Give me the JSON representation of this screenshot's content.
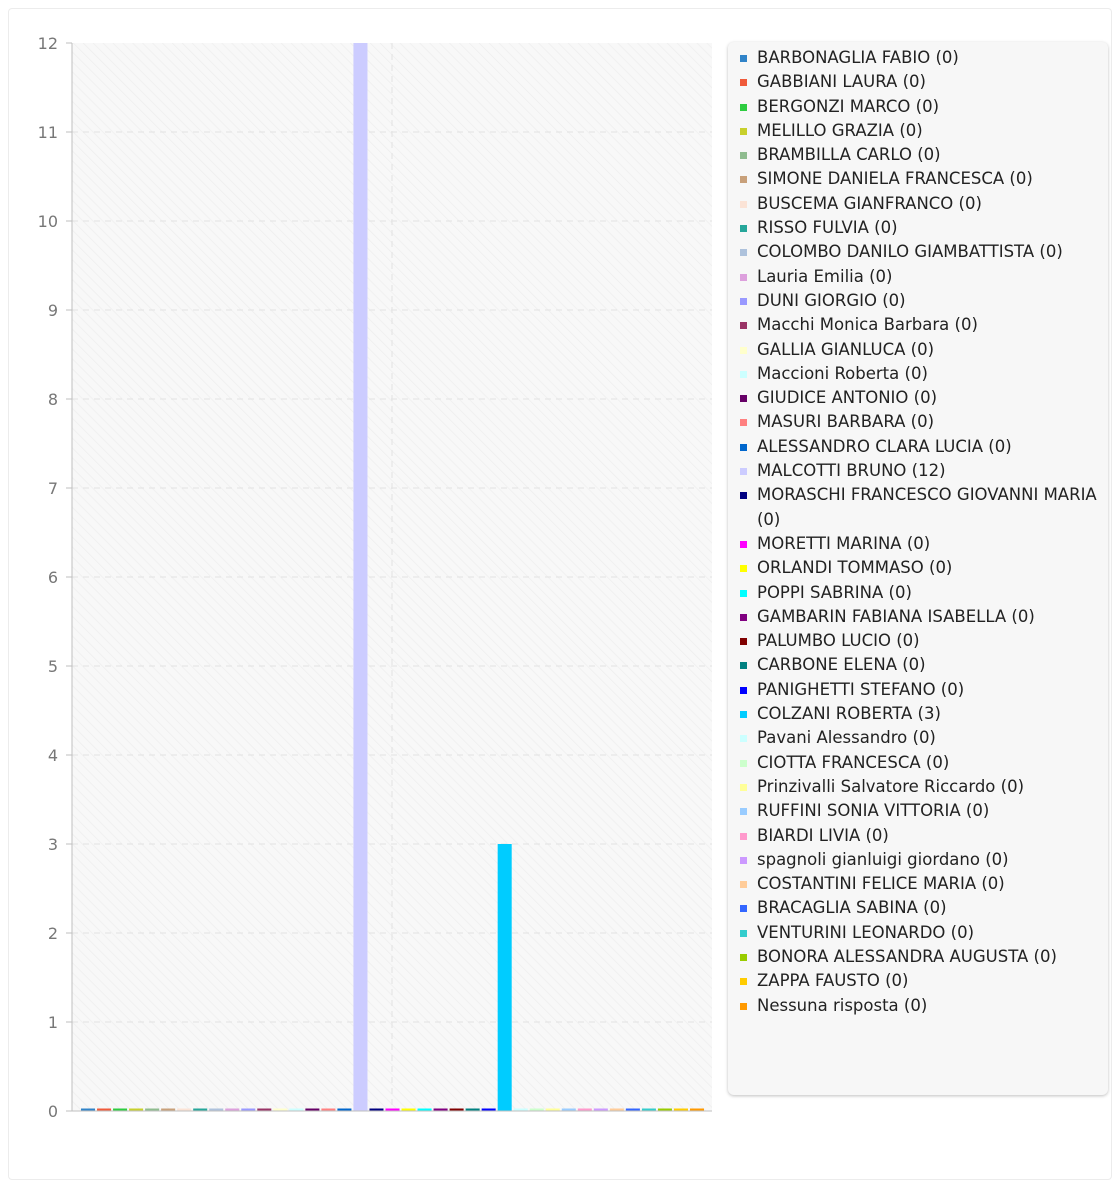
{
  "chart_data": {
    "type": "bar",
    "ylim": [
      0,
      12
    ],
    "yticks": [
      "0",
      "1",
      "2",
      "3",
      "4",
      "5",
      "6",
      "7",
      "8",
      "9",
      "10",
      "11",
      "12"
    ],
    "grid": true,
    "legend_position": "right",
    "series": [
      {
        "name": "BARBONAGLIA FABIO (0)",
        "value": 0,
        "color": "#3083c8"
      },
      {
        "name": "GABBIANI LAURA (0)",
        "value": 0,
        "color": "#f05a3a"
      },
      {
        "name": "BERGONZI MARCO (0)",
        "value": 0,
        "color": "#2ecc40"
      },
      {
        "name": "MELILLO GRAZIA (0)",
        "value": 0,
        "color": "#c8d02c"
      },
      {
        "name": "BRAMBILLA CARLO (0)",
        "value": 0,
        "color": "#8fbc8f"
      },
      {
        "name": "SIMONE DANIELA FRANCESCA (0)",
        "value": 0,
        "color": "#c8a07a"
      },
      {
        "name": "BUSCEMA GIANFRANCO (0)",
        "value": 0,
        "color": "#fbe3d6"
      },
      {
        "name": "RISSO FULVIA (0)",
        "value": 0,
        "color": "#26a69a"
      },
      {
        "name": "COLOMBO DANILO GIAMBATTISTA (0)",
        "value": 0,
        "color": "#aec2dc"
      },
      {
        "name": "Lauria Emilia (0)",
        "value": 0,
        "color": "#dda0dd"
      },
      {
        "name": "DUNI GIORGIO (0)",
        "value": 0,
        "color": "#9999ff"
      },
      {
        "name": "Macchi Monica Barbara (0)",
        "value": 0,
        "color": "#993366"
      },
      {
        "name": "GALLIA GIANLUCA (0)",
        "value": 0,
        "color": "#ffffcc"
      },
      {
        "name": "Maccioni Roberta (0)",
        "value": 0,
        "color": "#ccffff"
      },
      {
        "name": "GIUDICE ANTONIO (0)",
        "value": 0,
        "color": "#660066"
      },
      {
        "name": "MASURI BARBARA (0)",
        "value": 0,
        "color": "#ff8080"
      },
      {
        "name": "ALESSANDRO CLARA LUCIA (0)",
        "value": 0,
        "color": "#0066cc"
      },
      {
        "name": "MALCOTTI BRUNO (12)",
        "value": 12,
        "color": "#ccccff"
      },
      {
        "name": "MORASCHI FRANCESCO GIOVANNI MARIA (0)",
        "value": 0,
        "color": "#000080"
      },
      {
        "name": "MORETTI MARINA (0)",
        "value": 0,
        "color": "#ff00ff"
      },
      {
        "name": "ORLANDI TOMMASO (0)",
        "value": 0,
        "color": "#ffff00"
      },
      {
        "name": "POPPI SABRINA (0)",
        "value": 0,
        "color": "#00ffff"
      },
      {
        "name": "GAMBARIN FABIANA ISABELLA (0)",
        "value": 0,
        "color": "#800080"
      },
      {
        "name": "PALUMBO LUCIO (0)",
        "value": 0,
        "color": "#800000"
      },
      {
        "name": "CARBONE ELENA (0)",
        "value": 0,
        "color": "#008080"
      },
      {
        "name": "PANIGHETTI STEFANO (0)",
        "value": 0,
        "color": "#0000ff"
      },
      {
        "name": "COLZANI ROBERTA (3)",
        "value": 3,
        "color": "#00ccff"
      },
      {
        "name": "Pavani Alessandro (0)",
        "value": 0,
        "color": "#ccffff"
      },
      {
        "name": "CIOTTA FRANCESCA (0)",
        "value": 0,
        "color": "#ccffcc"
      },
      {
        "name": "Prinzivalli Salvatore Riccardo (0)",
        "value": 0,
        "color": "#ffff99"
      },
      {
        "name": "RUFFINI SONIA VITTORIA (0)",
        "value": 0,
        "color": "#99ccff"
      },
      {
        "name": "BIARDI LIVIA (0)",
        "value": 0,
        "color": "#ff99cc"
      },
      {
        "name": "spagnoli gianluigi giordano (0)",
        "value": 0,
        "color": "#cc99ff"
      },
      {
        "name": "COSTANTINI FELICE MARIA (0)",
        "value": 0,
        "color": "#ffcc99"
      },
      {
        "name": "BRACAGLIA SABINA (0)",
        "value": 0,
        "color": "#3366ff"
      },
      {
        "name": "VENTURINI LEONARDO (0)",
        "value": 0,
        "color": "#33cccc"
      },
      {
        "name": "BONORA ALESSANDRA AUGUSTA (0)",
        "value": 0,
        "color": "#99cc00"
      },
      {
        "name": "ZAPPA FAUSTO (0)",
        "value": 0,
        "color": "#ffcc00"
      },
      {
        "name": "Nessuna risposta (0)",
        "value": 0,
        "color": "#ff9900"
      }
    ]
  }
}
